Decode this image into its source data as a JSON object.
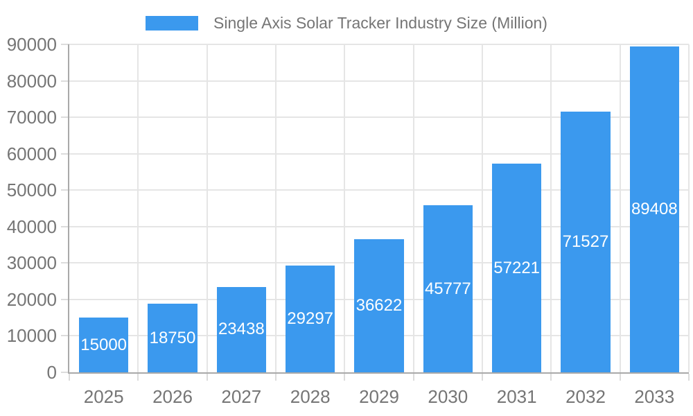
{
  "legend": {
    "label": "Single Axis Solar Tracker Industry Size (Million)"
  },
  "colors": {
    "bar": "#3B99EE",
    "bar-value-text": "#FFFFFF",
    "grid": "#E5E5E5",
    "tick": "#DCDCDC",
    "axis-line": "#A9A9A9",
    "axis-text": "#757575",
    "background": "#FFFFFF"
  },
  "chart_data": {
    "type": "bar",
    "title": "Single Axis Solar Tracker Industry Size (Million)",
    "categories": [
      "2025",
      "2026",
      "2027",
      "2028",
      "2029",
      "2030",
      "2031",
      "2032",
      "2033"
    ],
    "values": [
      15000,
      18750,
      23438,
      29297,
      36622,
      45777,
      57221,
      71527,
      89408
    ],
    "xlabel": "",
    "ylabel": "",
    "ylim": [
      0,
      90000
    ],
    "ytick_step": 10000,
    "ytick_labels": [
      "0",
      "10000",
      "20000",
      "30000",
      "40000",
      "50000",
      "60000",
      "70000",
      "80000",
      "90000"
    ],
    "grid": true,
    "legend_position": "top",
    "value_label_position": "inside-center"
  }
}
